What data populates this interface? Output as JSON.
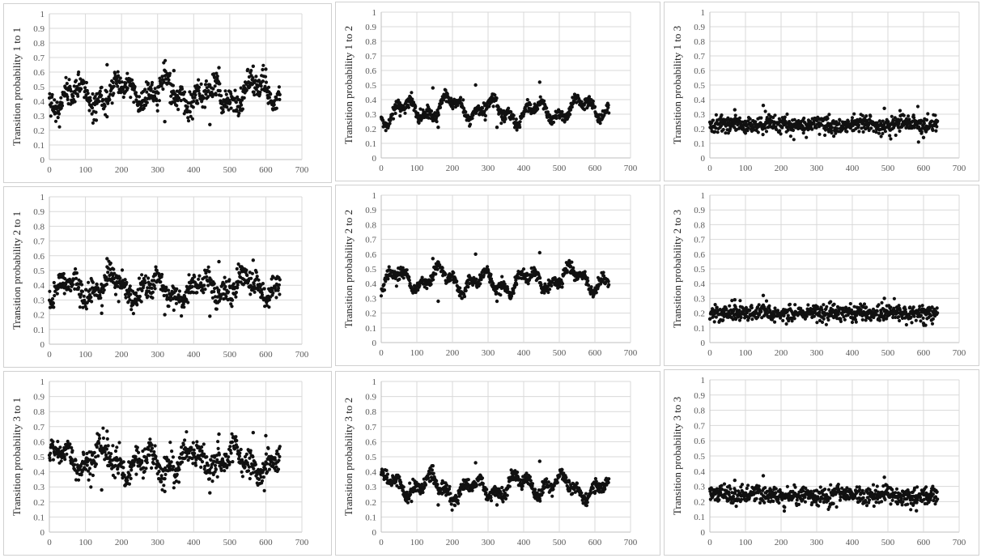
{
  "colors": {
    "points": "#111111",
    "grid": "#d9d9d9",
    "axis": "#bfbfbf",
    "tick_text": "#595959"
  },
  "chart_data": [
    {
      "type": "scatter",
      "ylabel": "Transition probability  1 to 1",
      "xlim": [
        0,
        700
      ],
      "ylim": [
        0,
        1
      ],
      "x_ticks": [
        "0",
        "100",
        "200",
        "300",
        "400",
        "500",
        "600",
        "700"
      ],
      "y_ticks": [
        "0",
        "0.1",
        "0.2",
        "0.3",
        "0.4",
        "0.5",
        "0.6",
        "0.7",
        "0.8",
        "0.9",
        "1"
      ],
      "grid": true,
      "n_points": 640,
      "pattern": {
        "mean": 0.45,
        "amplitude": 0.09,
        "noise": 0.045,
        "spikes": [
          [
            160,
            0.65
          ],
          [
            565,
            0.64
          ],
          [
            600,
            0.62
          ],
          [
            345,
            0.61
          ],
          [
            470,
            0.63
          ],
          [
            445,
            0.24
          ],
          [
            130,
            0.27
          ],
          [
            320,
            0.26
          ]
        ]
      }
    },
    {
      "type": "scatter",
      "ylabel": "Transition probability  1 to 2",
      "xlim": [
        0,
        700
      ],
      "ylim": [
        0,
        1
      ],
      "x_ticks": [
        "0",
        "100",
        "200",
        "300",
        "400",
        "500",
        "600",
        "700"
      ],
      "y_ticks": [
        "0",
        "0.1",
        "0.2",
        "0.3",
        "0.4",
        "0.5",
        "0.6",
        "0.7",
        "0.8",
        "0.9",
        "1"
      ],
      "grid": true,
      "n_points": 640,
      "pattern": {
        "mean": 0.33,
        "amplitude": 0.08,
        "noise": 0.02,
        "spikes": [
          [
            265,
            0.5
          ],
          [
            445,
            0.52
          ],
          [
            145,
            0.48
          ],
          [
            325,
            0.21
          ],
          [
            160,
            0.21
          ]
        ]
      }
    },
    {
      "type": "scatter",
      "ylabel": "Transition probability  1 to 3",
      "xlim": [
        0,
        700
      ],
      "ylim": [
        0,
        1
      ],
      "x_ticks": [
        "0",
        "100",
        "200",
        "300",
        "400",
        "500",
        "600",
        "700"
      ],
      "y_ticks": [
        "0",
        "0.1",
        "0.2",
        "0.3",
        "0.4",
        "0.5",
        "0.6",
        "0.7",
        "0.8",
        "0.9",
        "1"
      ],
      "grid": true,
      "n_points": 640,
      "pattern": {
        "mean": 0.23,
        "amplitude": 0.015,
        "noise": 0.03,
        "spikes": [
          [
            150,
            0.36
          ],
          [
            490,
            0.34
          ],
          [
            70,
            0.33
          ],
          [
            600,
            0.14
          ]
        ]
      }
    },
    {
      "type": "scatter",
      "ylabel": "Transition probability  2 to 1",
      "xlim": [
        0,
        700
      ],
      "ylim": [
        0,
        1
      ],
      "x_ticks": [
        "0",
        "100",
        "200",
        "300",
        "400",
        "500",
        "600",
        "700"
      ],
      "y_ticks": [
        "0",
        "0.1",
        "0.2",
        "0.3",
        "0.4",
        "0.5",
        "0.6",
        "0.7",
        "0.8",
        "0.9",
        "1"
      ],
      "grid": true,
      "n_points": 640,
      "pattern": {
        "mean": 0.38,
        "amplitude": 0.08,
        "noise": 0.04,
        "spikes": [
          [
            160,
            0.58
          ],
          [
            565,
            0.57
          ],
          [
            470,
            0.56
          ],
          [
            445,
            0.19
          ],
          [
            145,
            0.21
          ],
          [
            320,
            0.2
          ]
        ]
      }
    },
    {
      "type": "scatter",
      "ylabel": "Transition probability  2 to 2",
      "xlim": [
        0,
        700
      ],
      "ylim": [
        0,
        1
      ],
      "x_ticks": [
        "0",
        "100",
        "200",
        "300",
        "400",
        "500",
        "600",
        "700"
      ],
      "y_ticks": [
        "0",
        "0.1",
        "0.2",
        "0.3",
        "0.4",
        "0.5",
        "0.6",
        "0.7",
        "0.8",
        "0.9",
        "1"
      ],
      "grid": true,
      "n_points": 640,
      "pattern": {
        "mean": 0.42,
        "amplitude": 0.08,
        "noise": 0.02,
        "spikes": [
          [
            265,
            0.6
          ],
          [
            445,
            0.61
          ],
          [
            145,
            0.57
          ],
          [
            325,
            0.28
          ],
          [
            160,
            0.28
          ]
        ]
      }
    },
    {
      "type": "scatter",
      "ylabel": "Transition probability  2 to 3",
      "xlim": [
        0,
        700
      ],
      "ylim": [
        0,
        1
      ],
      "x_ticks": [
        "0",
        "100",
        "200",
        "300",
        "400",
        "500",
        "600",
        "700"
      ],
      "y_ticks": [
        "0",
        "0.1",
        "0.2",
        "0.3",
        "0.4",
        "0.5",
        "0.6",
        "0.7",
        "0.8",
        "0.9",
        "1"
      ],
      "grid": true,
      "n_points": 640,
      "pattern": {
        "mean": 0.2,
        "amplitude": 0.012,
        "noise": 0.028,
        "spikes": [
          [
            150,
            0.32
          ],
          [
            490,
            0.3
          ],
          [
            70,
            0.29
          ],
          [
            600,
            0.13
          ]
        ]
      }
    },
    {
      "type": "scatter",
      "ylabel": "Transition probability  3 to 1",
      "xlim": [
        0,
        700
      ],
      "ylim": [
        0,
        1
      ],
      "x_ticks": [
        "0",
        "100",
        "200",
        "300",
        "400",
        "500",
        "600",
        "700"
      ],
      "y_ticks": [
        "0",
        "0.1",
        "0.2",
        "0.3",
        "0.4",
        "0.5",
        "0.6",
        "0.7",
        "0.8",
        "0.9",
        "1"
      ],
      "grid": true,
      "n_points": 640,
      "pattern": {
        "mean": 0.47,
        "amplitude": 0.09,
        "noise": 0.045,
        "spikes": [
          [
            160,
            0.67
          ],
          [
            565,
            0.66
          ],
          [
            600,
            0.64
          ],
          [
            470,
            0.65
          ],
          [
            445,
            0.26
          ],
          [
            145,
            0.28
          ],
          [
            320,
            0.27
          ]
        ]
      }
    },
    {
      "type": "scatter",
      "ylabel": "Transition probability  3 to 2",
      "xlim": [
        0,
        700
      ],
      "ylim": [
        0,
        1
      ],
      "x_ticks": [
        "0",
        "100",
        "200",
        "300",
        "400",
        "500",
        "600",
        "700"
      ],
      "y_ticks": [
        "0",
        "0.1",
        "0.2",
        "0.3",
        "0.4",
        "0.5",
        "0.6",
        "0.7",
        "0.8",
        "0.9",
        "1"
      ],
      "grid": true,
      "n_points": 640,
      "pattern": {
        "mean": 0.3,
        "amplitude": 0.075,
        "noise": 0.02,
        "spikes": [
          [
            265,
            0.46
          ],
          [
            445,
            0.47
          ],
          [
            145,
            0.44
          ],
          [
            325,
            0.18
          ],
          [
            160,
            0.18
          ]
        ]
      }
    },
    {
      "type": "scatter",
      "ylabel": "Transition probability  3 to 3",
      "xlim": [
        0,
        700
      ],
      "ylim": [
        0,
        1
      ],
      "x_ticks": [
        "0",
        "100",
        "200",
        "300",
        "400",
        "500",
        "600",
        "700"
      ],
      "y_ticks": [
        "0",
        "0.1",
        "0.2",
        "0.3",
        "0.4",
        "0.5",
        "0.6",
        "0.7",
        "0.8",
        "0.9",
        "1"
      ],
      "grid": true,
      "n_points": 640,
      "pattern": {
        "mean": 0.24,
        "amplitude": 0.015,
        "noise": 0.03,
        "spikes": [
          [
            150,
            0.37
          ],
          [
            490,
            0.36
          ],
          [
            70,
            0.34
          ],
          [
            580,
            0.14
          ]
        ]
      }
    }
  ]
}
